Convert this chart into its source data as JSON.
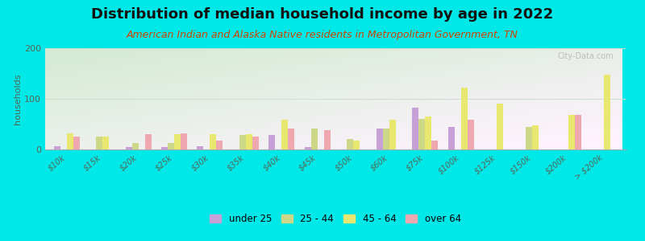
{
  "title": "Distribution of median household income by age in 2022",
  "subtitle": "American Indian and Alaska Native residents in Metropolitan Government, TN",
  "ylabel": "households",
  "categories": [
    "$10k",
    "$15k",
    "$20k",
    "$25k",
    "$30k",
    "$35k",
    "$40k",
    "$45k",
    "$50k",
    "$60k",
    "$75k",
    "$100k",
    "$125k",
    "$150k",
    "$200k",
    "> $200k"
  ],
  "age_groups": [
    "under 25",
    "25 - 44",
    "45 - 64",
    "over 64"
  ],
  "colors": [
    "#c8a0d8",
    "#ccd888",
    "#e8e870",
    "#f0a8b0"
  ],
  "values": {
    "under 25": [
      7,
      0,
      5,
      5,
      7,
      0,
      28,
      5,
      0,
      42,
      82,
      45,
      0,
      0,
      0,
      0
    ],
    "25 - 44": [
      0,
      25,
      12,
      12,
      0,
      28,
      0,
      42,
      20,
      42,
      60,
      0,
      0,
      45,
      0,
      0
    ],
    "45 - 64": [
      32,
      25,
      0,
      30,
      30,
      30,
      58,
      0,
      18,
      58,
      65,
      122,
      90,
      48,
      68,
      148
    ],
    "over 64": [
      25,
      0,
      30,
      32,
      18,
      25,
      42,
      38,
      0,
      0,
      18,
      58,
      0,
      0,
      68,
      0
    ]
  },
  "ylim": [
    0,
    200
  ],
  "yticks": [
    0,
    100,
    200
  ],
  "background_color": "#00e8e8",
  "title_fontsize": 13,
  "subtitle_fontsize": 9,
  "watermark": "City-Data.com"
}
